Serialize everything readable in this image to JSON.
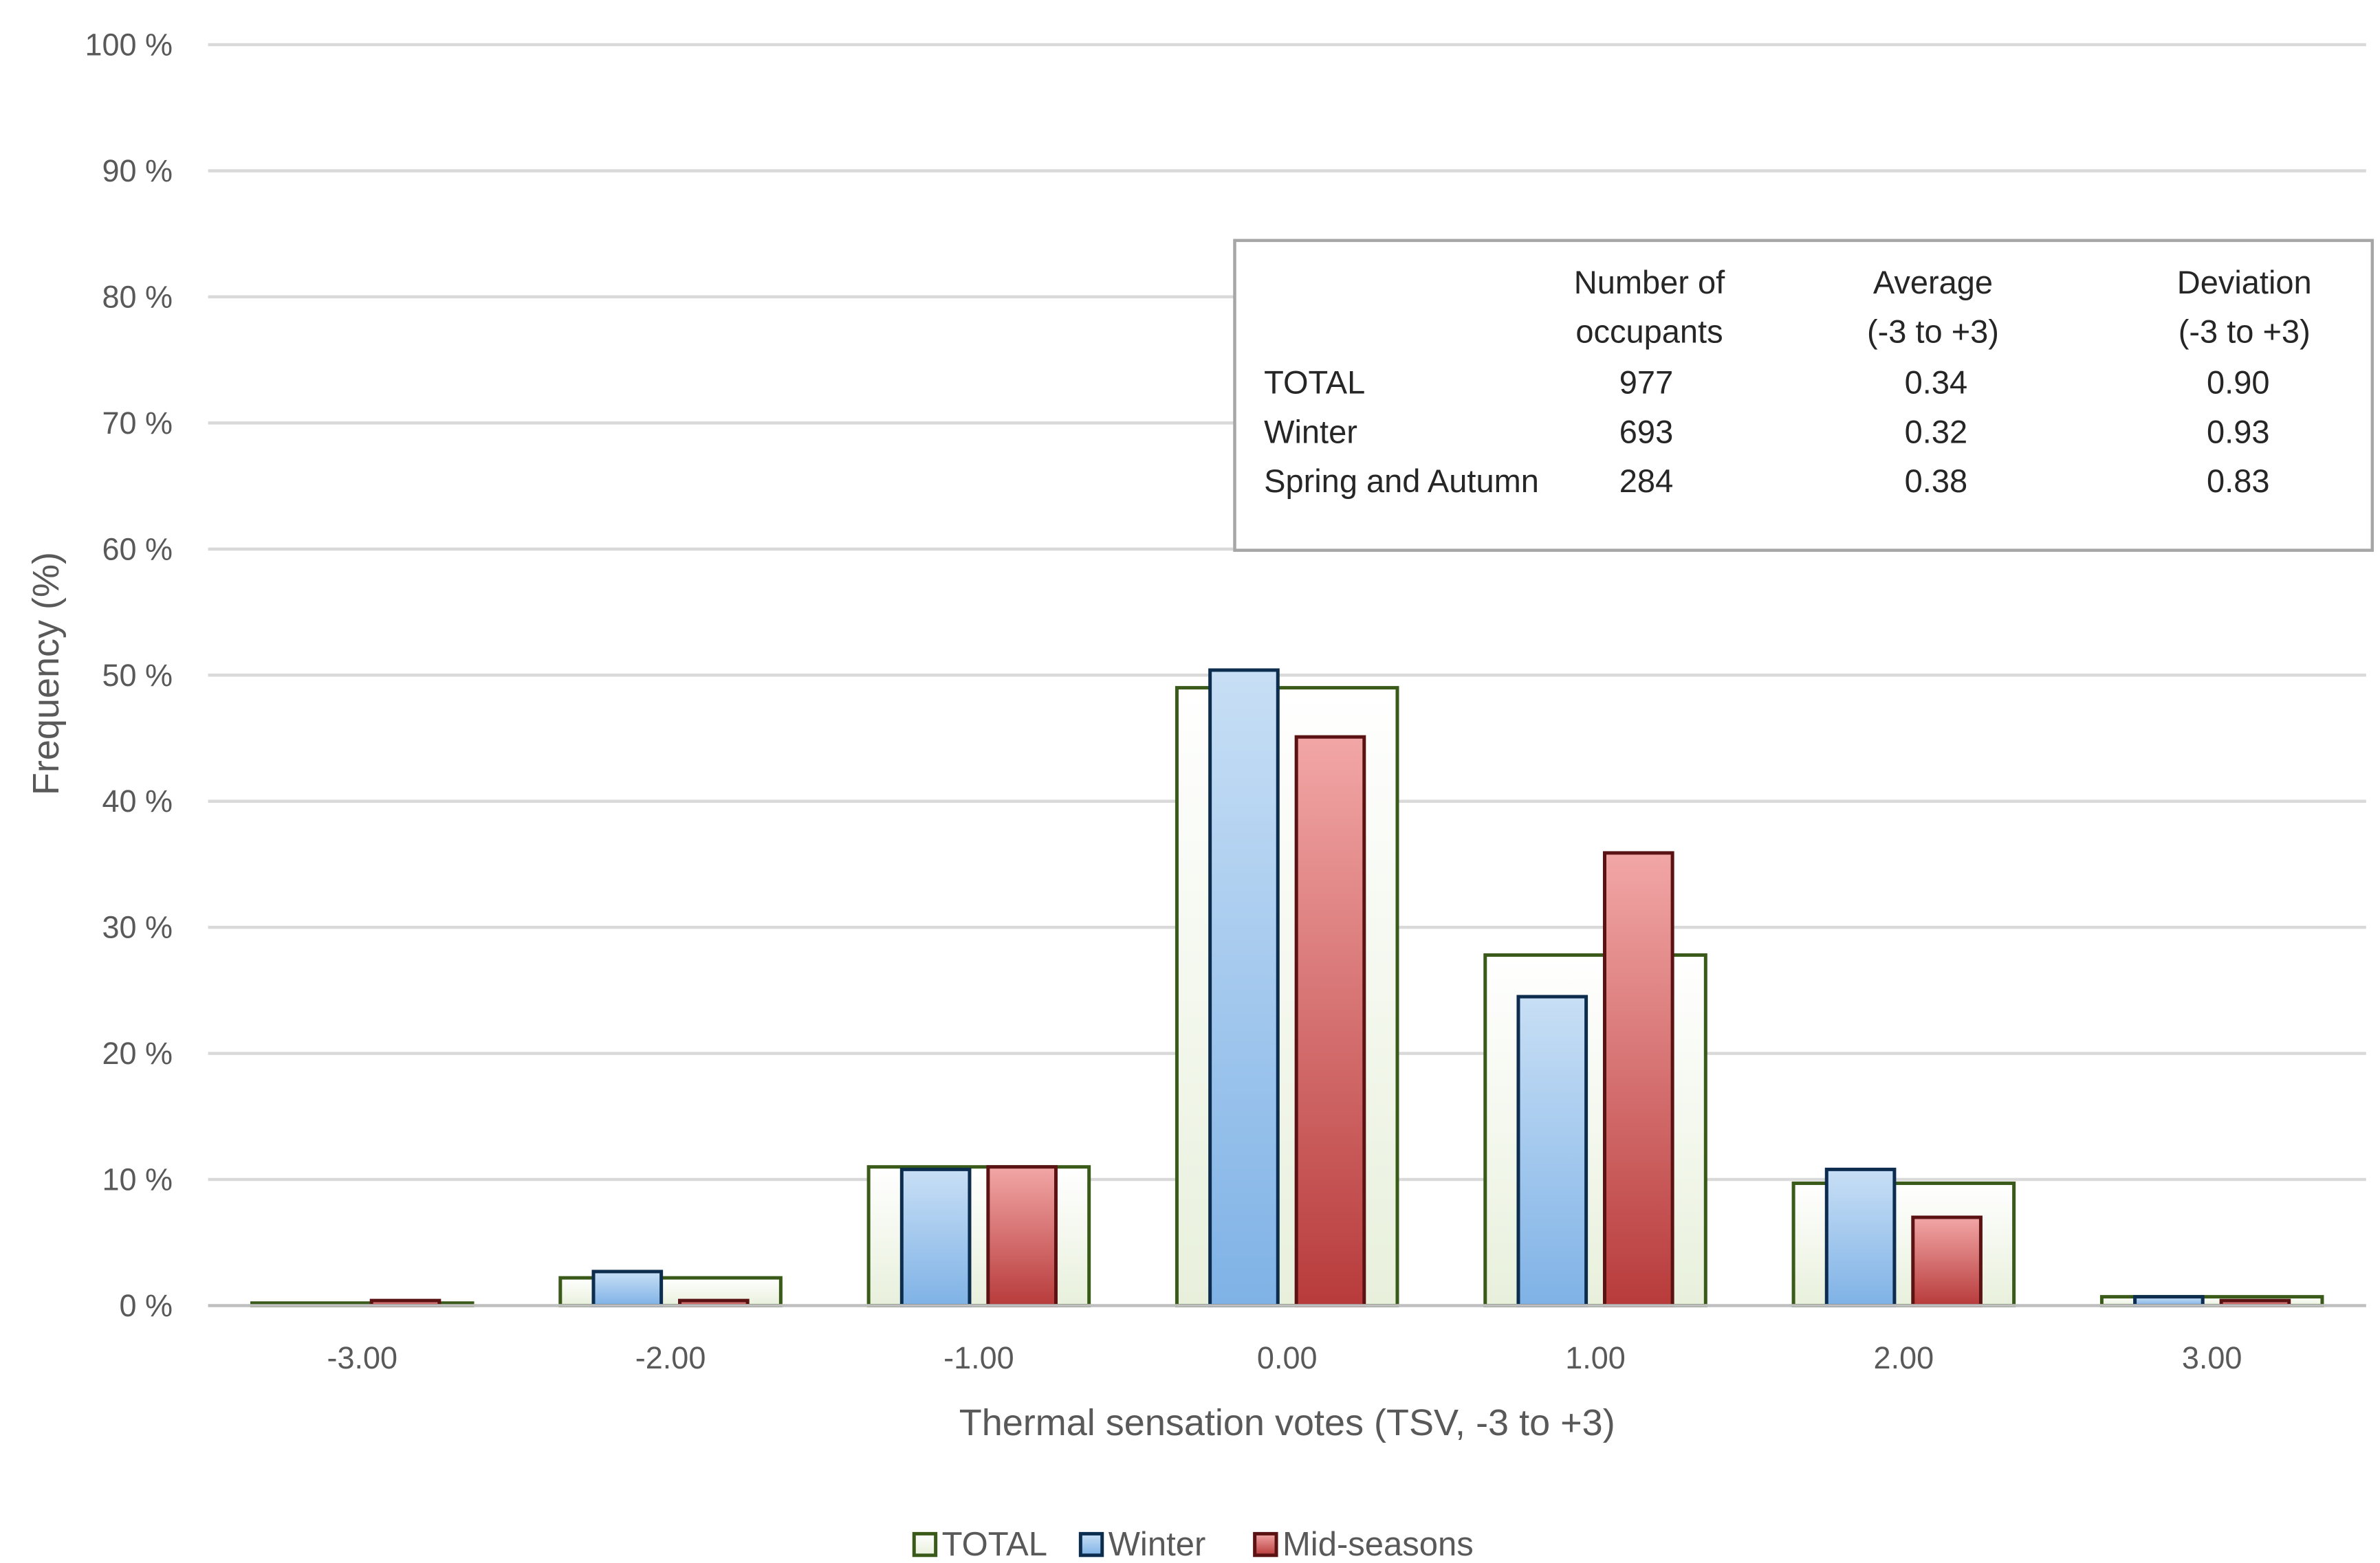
{
  "chart_data": {
    "type": "bar",
    "title": "",
    "xlabel": "Thermal sensation votes (TSV, -3 to +3)",
    "ylabel": "Frequency (%)",
    "ylim": [
      0,
      100
    ],
    "y_ticks": [
      "0 %",
      "10 %",
      "20 %",
      "30 %",
      "40 %",
      "50 %",
      "60 %",
      "70 %",
      "80 %",
      "90 %",
      "100 %"
    ],
    "categories": [
      "-3.00",
      "-2.00",
      "-1.00",
      "0.00",
      "1.00",
      "2.00",
      "3.00"
    ],
    "series": [
      {
        "name": "TOTAL",
        "values": [
          0.2,
          2.2,
          11.0,
          49.0,
          27.8,
          9.7,
          0.7
        ],
        "fill": "#ffffff",
        "fill_bottom": "#e8f0dc",
        "stroke": "#3a5a1a"
      },
      {
        "name": "Winter",
        "values": [
          0.0,
          2.7,
          10.8,
          50.4,
          24.5,
          10.8,
          0.7
        ],
        "fill": "#c8dff5",
        "fill_bottom": "#7fb2e6",
        "stroke": "#0d2d4f"
      },
      {
        "name": "Mid-seasons",
        "values": [
          0.4,
          0.4,
          11.0,
          45.1,
          35.9,
          7.0,
          0.4
        ],
        "fill": "#f2a6a6",
        "fill_bottom": "#b83b3b",
        "stroke": "#5a1212"
      }
    ],
    "grid": true,
    "legend": "bottom-center",
    "stats_table": {
      "col_headers": [
        [
          "Number of",
          "occupants"
        ],
        [
          "Average",
          "(-3 to +3)"
        ],
        [
          "Deviation",
          "(-3 to +3)"
        ]
      ],
      "rows": [
        {
          "label": "TOTAL",
          "values": [
            "977",
            "0.34",
            "0.90"
          ]
        },
        {
          "label": "Winter",
          "values": [
            "693",
            "0.32",
            "0.93"
          ]
        },
        {
          "label": "Spring and Autumn",
          "values": [
            "284",
            "0.38",
            "0.83"
          ]
        }
      ]
    }
  }
}
